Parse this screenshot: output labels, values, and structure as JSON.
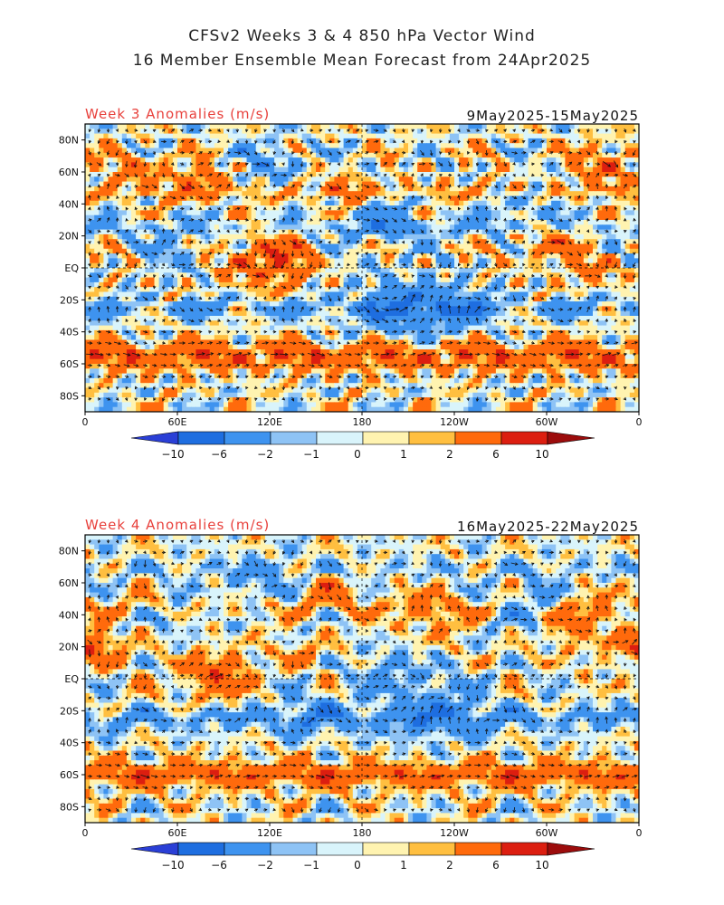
{
  "header": {
    "title_line1": "CFSv2 Weeks 3 & 4 850 hPa Vector Wind",
    "title_line2": "16 Member Ensemble Mean Forecast from 24Apr2025"
  },
  "chart_data": [
    {
      "type": "heatmap",
      "title": "Week 3 Anomalies (m/s)",
      "date_range": "9May2025-15May2025",
      "x_ticks": [
        "0",
        "60E",
        "120E",
        "180",
        "120W",
        "60W",
        "0"
      ],
      "y_ticks": [
        "80N",
        "60N",
        "40N",
        "20N",
        "EQ",
        "20S",
        "40S",
        "60S",
        "80S"
      ],
      "xlim": [
        0,
        360
      ],
      "ylim": [
        -90,
        90
      ],
      "seed": 7,
      "bands": [
        {
          "lat": -55,
          "w": 9,
          "amp": 4.5
        },
        {
          "lat": 48,
          "w": 6,
          "amp": 1.5
        },
        {
          "lat": 25,
          "w": 6,
          "amp": -1.6
        },
        {
          "lat": -25,
          "w": 7,
          "amp": -2.2
        }
      ],
      "blobs": [
        {
          "lon": 120,
          "lat": 5,
          "r": 12,
          "amp": 5.5
        },
        {
          "lon": 75,
          "lat": 55,
          "r": 8,
          "amp": 3.5
        },
        {
          "lon": 35,
          "lat": 62,
          "r": 8,
          "amp": 3
        },
        {
          "lon": 300,
          "lat": 20,
          "r": 10,
          "amp": 4
        },
        {
          "lon": 330,
          "lat": 0,
          "r": 8,
          "amp": 3
        },
        {
          "lon": 340,
          "lat": 65,
          "r": 9,
          "amp": 4
        },
        {
          "lon": 205,
          "lat": -25,
          "r": 14,
          "amp": -4
        },
        {
          "lon": 240,
          "lat": -25,
          "r": 10,
          "amp": -3
        },
        {
          "lon": 195,
          "lat": 30,
          "r": 10,
          "amp": -3
        },
        {
          "lon": 120,
          "lat": 65,
          "r": 10,
          "amp": -3
        },
        {
          "lon": 290,
          "lat": 35,
          "r": 10,
          "amp": -3.5
        },
        {
          "lon": 60,
          "lat": 10,
          "r": 9,
          "amp": -2.5
        },
        {
          "lon": 170,
          "lat": 50,
          "r": 6,
          "amp": 3
        }
      ],
      "colorbar": {
        "labels": [
          "-10",
          "-6",
          "-2",
          "-1",
          "0",
          "1",
          "2",
          "6",
          "10"
        ],
        "colors": [
          "#1e6ee0",
          "#3e93ef",
          "#8ec3f5",
          "#d9f4fb",
          "#fff3b0",
          "#ffbf40",
          "#ff6a0c",
          "#dc1e10"
        ],
        "tip_low": "#2a3fd6",
        "tip_high": "#9c0c0c"
      }
    },
    {
      "type": "heatmap",
      "title": "Week 4 Anomalies (m/s)",
      "date_range": "16May2025-22May2025",
      "x_ticks": [
        "0",
        "60E",
        "120E",
        "180",
        "120W",
        "60W",
        "0"
      ],
      "y_ticks": [
        "80N",
        "60N",
        "40N",
        "20N",
        "EQ",
        "20S",
        "40S",
        "60S",
        "80S"
      ],
      "xlim": [
        0,
        360
      ],
      "ylim": [
        -90,
        90
      ],
      "seed": 23,
      "bands": [
        {
          "lat": -60,
          "w": 8,
          "amp": 4.2
        },
        {
          "lat": -25,
          "w": 8,
          "amp": -2.5
        },
        {
          "lat": 45,
          "w": 6,
          "amp": 1.2
        },
        {
          "lat": 70,
          "w": 6,
          "amp": -1.2
        }
      ],
      "blobs": [
        {
          "lon": 85,
          "lat": 2,
          "r": 10,
          "amp": 4.5
        },
        {
          "lon": 10,
          "lat": 20,
          "r": 8,
          "amp": 3.5
        },
        {
          "lon": 355,
          "lat": 20,
          "r": 6,
          "amp": 3
        },
        {
          "lon": 320,
          "lat": 35,
          "r": 10,
          "amp": 3.5
        },
        {
          "lon": 160,
          "lat": 55,
          "r": 7,
          "amp": 3
        },
        {
          "lon": 140,
          "lat": 15,
          "r": 6,
          "amp": 3
        },
        {
          "lon": 225,
          "lat": 40,
          "r": 10,
          "amp": 2.5
        },
        {
          "lon": 230,
          "lat": -20,
          "r": 14,
          "amp": -3.5
        },
        {
          "lon": 290,
          "lat": 45,
          "r": 10,
          "amp": -3.5
        },
        {
          "lon": 110,
          "lat": 60,
          "r": 10,
          "amp": -2.5
        },
        {
          "lon": 150,
          "lat": -20,
          "r": 10,
          "amp": -2.5
        },
        {
          "lon": 200,
          "lat": 5,
          "r": 10,
          "amp": -2.5
        },
        {
          "lon": 60,
          "lat": 40,
          "r": 8,
          "amp": -2
        }
      ],
      "colorbar": {
        "labels": [
          "-10",
          "-6",
          "-2",
          "-1",
          "0",
          "1",
          "2",
          "6",
          "10"
        ],
        "colors": [
          "#1e6ee0",
          "#3e93ef",
          "#8ec3f5",
          "#d9f4fb",
          "#fff3b0",
          "#ffbf40",
          "#ff6a0c",
          "#dc1e10"
        ],
        "tip_low": "#2a3fd6",
        "tip_high": "#9c0c0c"
      }
    }
  ]
}
